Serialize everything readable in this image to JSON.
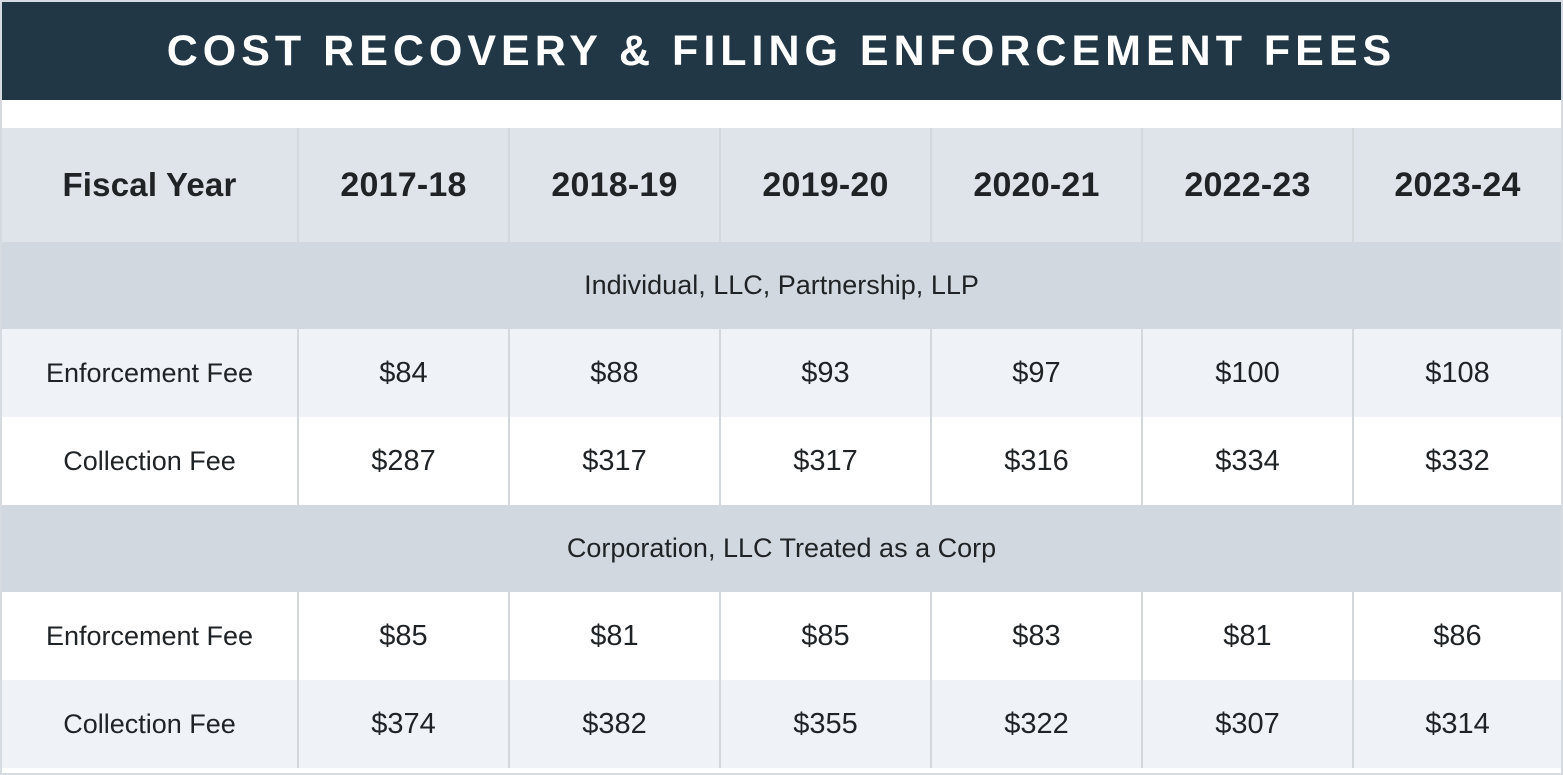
{
  "title": "COST RECOVERY & FILING ENFORCEMENT FEES",
  "header": {
    "label": "Fiscal Year",
    "years": [
      "2017-18",
      "2018-19",
      "2019-20",
      "2020-21",
      "2022-23",
      "2023-24"
    ]
  },
  "groups": [
    {
      "name": "Individual, LLC, Partnership, LLP",
      "rows": [
        {
          "label": "Enforcement Fee",
          "values": [
            "$84",
            "$88",
            "$93",
            "$97",
            "$100",
            "$108"
          ]
        },
        {
          "label": "Collection Fee",
          "values": [
            "$287",
            "$317",
            "$317",
            "$316",
            "$334",
            "$332"
          ]
        }
      ]
    },
    {
      "name": "Corporation, LLC Treated as a Corp",
      "rows": [
        {
          "label": "Enforcement Fee",
          "values": [
            "$85",
            "$81",
            "$85",
            "$83",
            "$81",
            "$86"
          ]
        },
        {
          "label": "Collection Fee",
          "values": [
            "$374",
            "$382",
            "$355",
            "$322",
            "$307",
            "$314"
          ]
        }
      ]
    }
  ],
  "colors": {
    "title_background": "#213745",
    "header_background": "#dfe4ea",
    "group_background": "#d2d8df",
    "shaded_row": "#eff3f7"
  }
}
